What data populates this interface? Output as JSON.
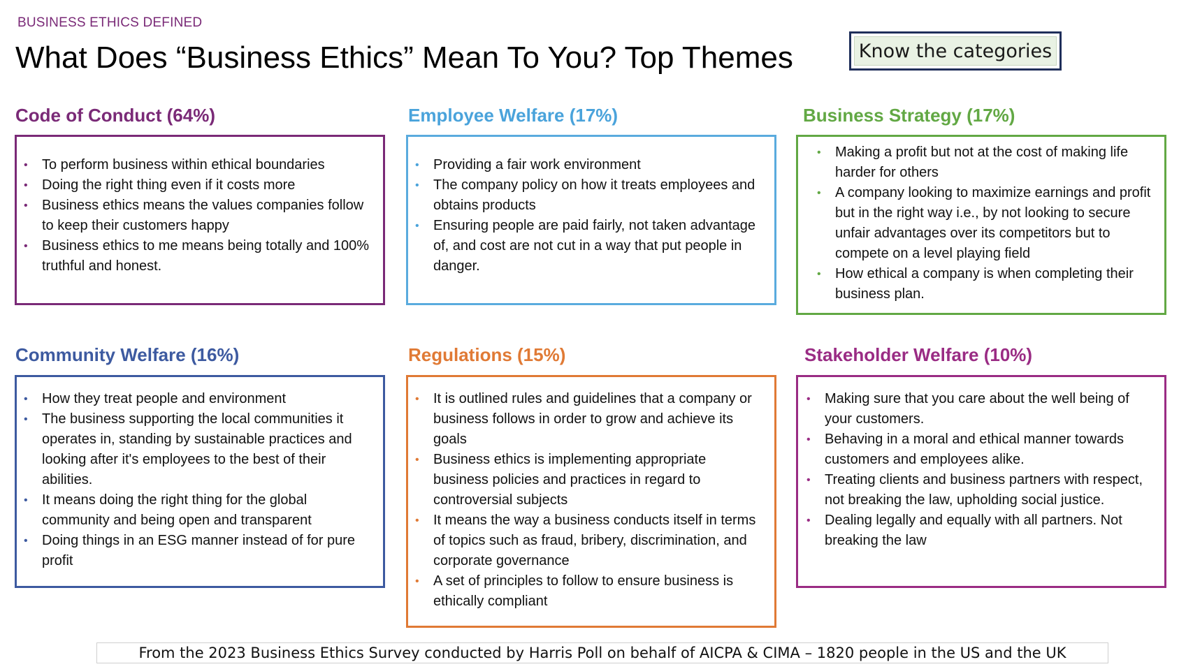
{
  "eyebrow": "BUSINESS ETHICS DEFINED",
  "title": "What Does “Business Ethics” Mean To You? Top Themes",
  "know_button": "Know the categories",
  "categories": [
    {
      "heading": "Code of Conduct (64%)",
      "color": "#7a2a77",
      "items": [
        "To perform business within ethical boundaries",
        "Doing the right thing even if it costs more",
        "Business ethics means the values companies follow to keep their customers happy",
        "Business ethics to me means being totally and 100% truthful and honest."
      ]
    },
    {
      "heading": "Employee Welfare (17%)",
      "color": "#4aa3db",
      "items": [
        "Providing a fair work environment",
        "The company policy on how it treats employees and obtains products",
        "Ensuring people are paid fairly, not taken advantage of, and cost are not cut in a way that put people in danger."
      ]
    },
    {
      "heading": "Business Strategy (17%)",
      "color": "#62a844",
      "items": [
        "Making a profit but not at the cost of making life harder for others",
        "A company looking to maximize earnings and profit but in the right way i.e., by not looking to secure unfair advantages over its competitors but to compete on a level playing field",
        "How ethical a company is when completing their business plan."
      ]
    },
    {
      "heading": "Community Welfare (16%)",
      "color": "#3d5aa0",
      "items": [
        "How they treat people and environment",
        "The business supporting the local communities it operates in, standing by sustainable practices and looking after it's employees to the best of their abilities.",
        "It means doing the right thing for the global community and being open and transparent",
        "Doing things in an ESG manner instead of for pure profit"
      ]
    },
    {
      "heading": "Regulations (15%)",
      "color": "#e07a35",
      "items": [
        "It is outlined rules and guidelines that a company or business follows in order to grow and achieve its goals",
        "Business ethics is implementing appropriate business policies and practices in regard to controversial subjects",
        "It means the way a business conducts itself in terms of topics such as fraud, bribery, discrimination, and corporate governance",
        "A set of principles to follow to ensure business is ethically compliant"
      ]
    },
    {
      "heading": "Stakeholder Welfare (10%)",
      "color": "#9a2c84",
      "items": [
        "Making sure that you care about the well being of your customers.",
        "Behaving in a moral and ethical manner towards customers and employees alike.",
        "Treating clients and business partners with respect, not breaking the law, upholding social justice.",
        "Dealing legally and equally with all partners. Not breaking the law"
      ]
    }
  ],
  "footer": "From the 2023 Business Ethics Survey conducted by Harris Poll on behalf of AICPA & CIMA – 1820 people in the US and the UK"
}
